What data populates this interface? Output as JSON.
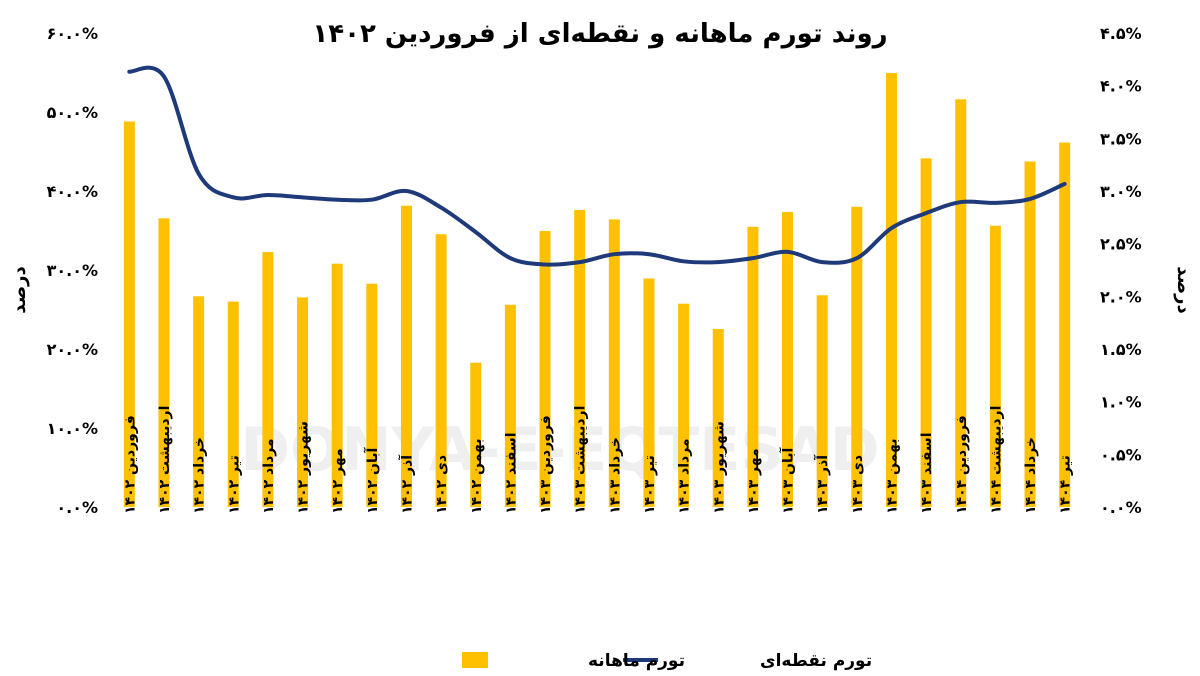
{
  "chart_data": {
    "type": "bar",
    "title": "روند تورم ماهانه و نقطه‌ای از فروردین ۱۴۰۲",
    "watermark": "DONYA-E-EQTESAD",
    "y_left_label": "درصد",
    "y_right_label": "درصد",
    "y_left_ticks": [
      "۰.۰%",
      "۱۰.۰%",
      "۲۰.۰%",
      "۳۰.۰%",
      "۴۰.۰%",
      "۵۰.۰%",
      "۶۰.۰%"
    ],
    "y_right_ticks": [
      "۰.۰%",
      "۰.۵%",
      "۱.۰%",
      "۱.۵%",
      "۲.۰%",
      "۲.۵%",
      "۳.۰%",
      "۳.۵%",
      "۴.۰%",
      "۴.۵%"
    ],
    "ylim_left": [
      0,
      60
    ],
    "ylim_right": [
      0,
      4.5
    ],
    "categories": [
      "فروردین ۱۴۰۲",
      "اردیبهشت ۱۴۰۲",
      "خرداد ۱۴۰۲",
      "تیر ۱۴۰۲",
      "مرداد ۱۴۰۲",
      "شهریور ۱۴۰۲",
      "مهر ۱۴۰۲",
      "آبان ۱۴۰۲",
      "آذر ۱۴۰۲",
      "دی ۱۴۰۲",
      "بهمن ۱۴۰۲",
      "اسفند ۱۴۰۲",
      "فروردین ۱۴۰۳",
      "اردیبهشت ۱۴۰۳",
      "خرداد ۱۴۰۳",
      "تیر ۱۴۰۳",
      "مرداد ۱۴۰۳",
      "شهریور ۱۴۰۳",
      "مهر ۱۴۰۳",
      "آبان ۱۴۰۳",
      "آذر ۱۴۰۳",
      "دی ۱۴۰۳",
      "بهمن ۱۴۰۳",
      "اسفند ۱۴۰۳",
      "فروردین ۱۴۰۴",
      "اردیبهشت ۱۴۰۴",
      "خرداد ۱۴۰۴",
      "تیر ۱۴۰۴"
    ],
    "series": [
      {
        "name": "تورم ماهانه",
        "type": "bar",
        "axis": "right",
        "color": "#FFC000",
        "values": [
          3.66,
          2.74,
          2.0,
          1.95,
          2.42,
          1.99,
          2.31,
          2.12,
          2.86,
          2.59,
          1.37,
          1.92,
          2.62,
          2.82,
          2.73,
          2.17,
          1.93,
          1.69,
          2.66,
          2.8,
          2.01,
          2.85,
          4.12,
          3.31,
          3.87,
          2.67,
          3.28,
          3.46
        ]
      },
      {
        "name": "تورم نقطه‌ای",
        "type": "line",
        "axis": "left",
        "color": "#1F3A7A",
        "values": [
          55.1,
          54.5,
          42.2,
          39.2,
          39.5,
          39.2,
          38.9,
          38.9,
          40.0,
          37.9,
          34.8,
          31.5,
          30.7,
          31.0,
          32.0,
          32.0,
          31.1,
          31.0,
          31.5,
          32.3,
          31.0,
          31.5,
          35.3,
          37.2,
          38.6,
          38.5,
          39.0,
          40.9
        ]
      }
    ],
    "legend_position": "bottom",
    "grid": false
  }
}
